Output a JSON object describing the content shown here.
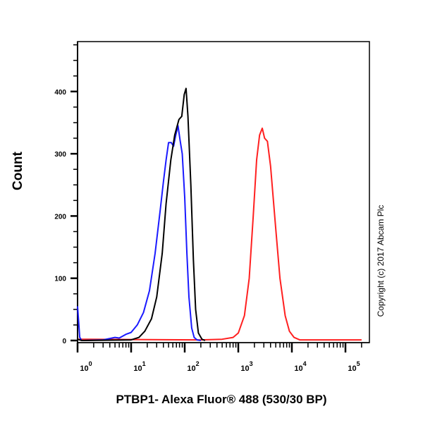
{
  "chart_data": {
    "type": "line",
    "subtype": "flow-cytometry-histogram",
    "title": "",
    "xlabel": "PTBP1- Alexa Fluor® 488 (530/30 BP)",
    "ylabel": "Count",
    "xscale": "log",
    "xlim": [
      1,
      200000
    ],
    "ylim": [
      0,
      470
    ],
    "x_ticks": [
      "10^0",
      "10^1",
      "10^2",
      "10^3",
      "10^4",
      "10^5"
    ],
    "x_tick_values": [
      1,
      10,
      100,
      1000,
      10000,
      100000
    ],
    "y_ticks": [
      0,
      100,
      200,
      300,
      400
    ],
    "grid": false,
    "legend": null,
    "annotation": "Copyright (c) 2017 Abcam Plc",
    "series": [
      {
        "name": "blue",
        "color": "#1a1aff",
        "points": [
          [
            1.0,
            55
          ],
          [
            1.1,
            5
          ],
          [
            1.2,
            0
          ],
          [
            3.0,
            1
          ],
          [
            5,
            5
          ],
          [
            6,
            4
          ],
          [
            8,
            10
          ],
          [
            10,
            13
          ],
          [
            13,
            25
          ],
          [
            17,
            45
          ],
          [
            22,
            80
          ],
          [
            28,
            140
          ],
          [
            35,
            210
          ],
          [
            40,
            255
          ],
          [
            45,
            290
          ],
          [
            50,
            318
          ],
          [
            56,
            318
          ],
          [
            62,
            312
          ],
          [
            68,
            330
          ],
          [
            75,
            345
          ],
          [
            82,
            322
          ],
          [
            90,
            300
          ],
          [
            100,
            230
          ],
          [
            110,
            140
          ],
          [
            120,
            70
          ],
          [
            135,
            20
          ],
          [
            150,
            5
          ],
          [
            170,
            1
          ],
          [
            200,
            0
          ]
        ]
      },
      {
        "name": "black",
        "color": "#000000",
        "points": [
          [
            1.0,
            2
          ],
          [
            1.2,
            0
          ],
          [
            10,
            1
          ],
          [
            14,
            5
          ],
          [
            18,
            15
          ],
          [
            24,
            35
          ],
          [
            30,
            70
          ],
          [
            38,
            140
          ],
          [
            45,
            220
          ],
          [
            55,
            290
          ],
          [
            65,
            330
          ],
          [
            78,
            355
          ],
          [
            88,
            360
          ],
          [
            98,
            395
          ],
          [
            106,
            405
          ],
          [
            115,
            360
          ],
          [
            130,
            250
          ],
          [
            145,
            130
          ],
          [
            160,
            50
          ],
          [
            180,
            12
          ],
          [
            210,
            2
          ],
          [
            240,
            0
          ]
        ]
      },
      {
        "name": "red",
        "color": "#ff2020",
        "points": [
          [
            1.0,
            2
          ],
          [
            200,
            1
          ],
          [
            500,
            2
          ],
          [
            800,
            5
          ],
          [
            1000,
            12
          ],
          [
            1300,
            40
          ],
          [
            1600,
            100
          ],
          [
            1900,
            200
          ],
          [
            2200,
            290
          ],
          [
            2500,
            330
          ],
          [
            2800,
            341
          ],
          [
            3100,
            325
          ],
          [
            3500,
            320
          ],
          [
            4000,
            280
          ],
          [
            5000,
            180
          ],
          [
            6000,
            100
          ],
          [
            7500,
            40
          ],
          [
            9000,
            15
          ],
          [
            11000,
            5
          ],
          [
            14000,
            1
          ],
          [
            200000,
            1
          ]
        ]
      }
    ]
  }
}
